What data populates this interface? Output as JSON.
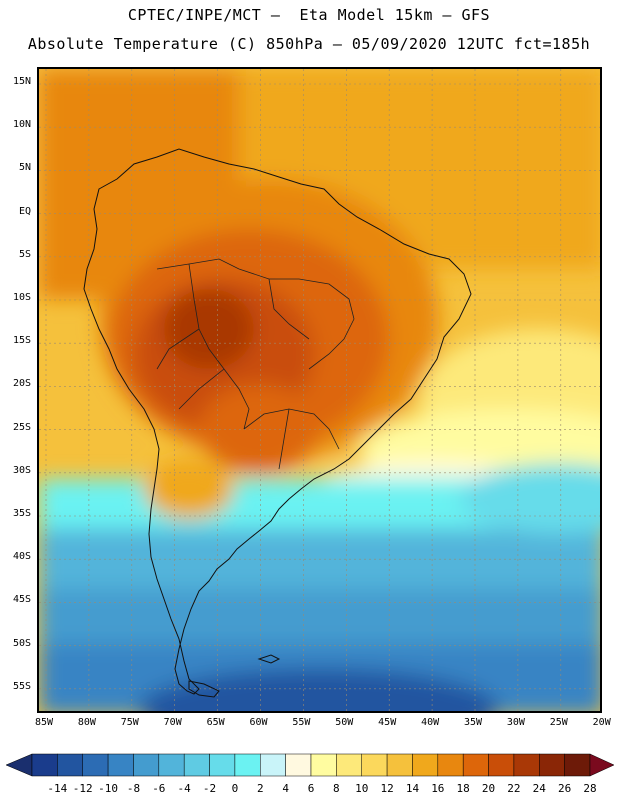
{
  "title_line1": "CPTEC/INPE/MCT –  Eta Model 15km – GFS",
  "title_line2": "Absolute Temperature (C) 850hPa – 05/09/2020 12UTC fct=185h",
  "lat_labels": [
    "15N",
    "10N",
    "5N",
    "EQ",
    "5S",
    "10S",
    "15S",
    "20S",
    "25S",
    "30S",
    "35S",
    "40S",
    "45S",
    "50S",
    "55S"
  ],
  "lon_labels": [
    "85W",
    "80W",
    "75W",
    "70W",
    "65W",
    "60W",
    "55W",
    "50W",
    "45W",
    "40W",
    "35W",
    "30W",
    "25W",
    "20W"
  ],
  "colorbar": {
    "labels": [
      "-14",
      "-12",
      "-10",
      "-8",
      "-6",
      "-4",
      "-2",
      "0",
      "2",
      "4",
      "6",
      "8",
      "10",
      "12",
      "14",
      "16",
      "18",
      "20",
      "22",
      "24",
      "26",
      "28"
    ],
    "colors": [
      "#1a3c8c",
      "#2255a0",
      "#2c6cb4",
      "#3784c4",
      "#449ccf",
      "#52b4da",
      "#5fcbe3",
      "#66dcea",
      "#6bf2f2",
      "#c9f4f9",
      "#fff9e0",
      "#fffca0",
      "#fde97a",
      "#fbd85c",
      "#f5c13c",
      "#f0a81c",
      "#e8870f",
      "#dd660a",
      "#c94e08",
      "#a93806",
      "#8a2606",
      "#6d1a08"
    ],
    "under_color": "#1a2f6e",
    "over_color": "#7a0a1e"
  }
}
